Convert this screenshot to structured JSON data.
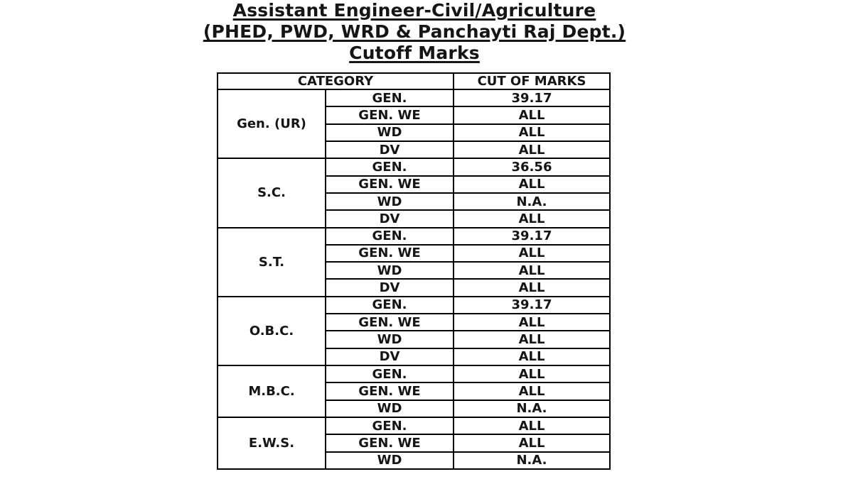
{
  "title": {
    "line1": "Assistant Engineer-Civil/Agriculture",
    "line2": "(PHED, PWD, WRD & Panchayti Raj Dept.)",
    "line3": "Cutoff Marks"
  },
  "table": {
    "headers": [
      "CATEGORY",
      "CUT OF MARKS"
    ],
    "groups": [
      {
        "category": "Gen. (UR)",
        "rows": [
          [
            "GEN.",
            "39.17"
          ],
          [
            "GEN. WE",
            "ALL"
          ],
          [
            "WD",
            "ALL"
          ],
          [
            "DV",
            "ALL"
          ]
        ]
      },
      {
        "category": "S.C.",
        "rows": [
          [
            "GEN.",
            "36.56"
          ],
          [
            "GEN. WE",
            "ALL"
          ],
          [
            "WD",
            "N.A."
          ],
          [
            "DV",
            "ALL"
          ]
        ]
      },
      {
        "category": "S.T.",
        "rows": [
          [
            "GEN.",
            "39.17"
          ],
          [
            "GEN. WE",
            "ALL"
          ],
          [
            "WD",
            "ALL"
          ],
          [
            "DV",
            "ALL"
          ]
        ]
      },
      {
        "category": "O.B.C.",
        "rows": [
          [
            "GEN.",
            "39.17"
          ],
          [
            "GEN. WE",
            "ALL"
          ],
          [
            "WD",
            "ALL"
          ],
          [
            "DV",
            "ALL"
          ]
        ]
      },
      {
        "category": "M.B.C.",
        "rows": [
          [
            "GEN.",
            "ALL"
          ],
          [
            "GEN. WE",
            "ALL"
          ],
          [
            "WD",
            "N.A."
          ]
        ]
      },
      {
        "category": "E.W.S.",
        "rows": [
          [
            "GEN.",
            "ALL"
          ],
          [
            "GEN. WE",
            "ALL"
          ],
          [
            "WD",
            "N.A."
          ]
        ]
      }
    ]
  },
  "colors": {
    "text": "#151515",
    "border": "#000000",
    "background": "#ffffff"
  }
}
